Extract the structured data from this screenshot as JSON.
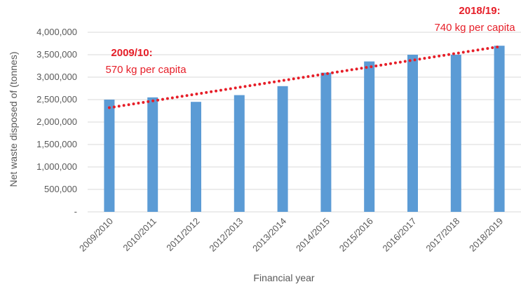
{
  "chart_data": {
    "type": "bar",
    "title": "",
    "xlabel": "Financial year",
    "ylabel": "Net waste disposed of (tonnes)",
    "ylim": [
      0,
      4000000
    ],
    "yticks": [
      0,
      500000,
      1000000,
      1500000,
      2000000,
      2500000,
      3000000,
      3500000,
      4000000
    ],
    "ytick_labels": [
      "-",
      "500,000",
      "1,000,000",
      "1,500,000",
      "2,000,000",
      "2,500,000",
      "3,000,000",
      "3,500,000",
      "4,000,000"
    ],
    "categories": [
      "2009/2010",
      "2010/2011",
      "2011/2012",
      "2012/2013",
      "2013/2014",
      "2014/2015",
      "2015/2016",
      "2016/2017",
      "2017/2018",
      "2018/2019"
    ],
    "values": [
      2500000,
      2550000,
      2450000,
      2600000,
      2800000,
      3100000,
      3350000,
      3500000,
      3500000,
      3700000
    ],
    "bar_color": "#5b9bd5",
    "trendline": {
      "style": "dotted",
      "color": "#e61e28",
      "start": 2320000,
      "end": 3680000
    },
    "grid": "horizontal",
    "annotations": [
      {
        "year": "2009/10:",
        "text": "570 kg per capita",
        "color": "#e61e28"
      },
      {
        "year": "2018/19:",
        "text": "740 kg per capita",
        "color": "#e61e28"
      }
    ]
  }
}
